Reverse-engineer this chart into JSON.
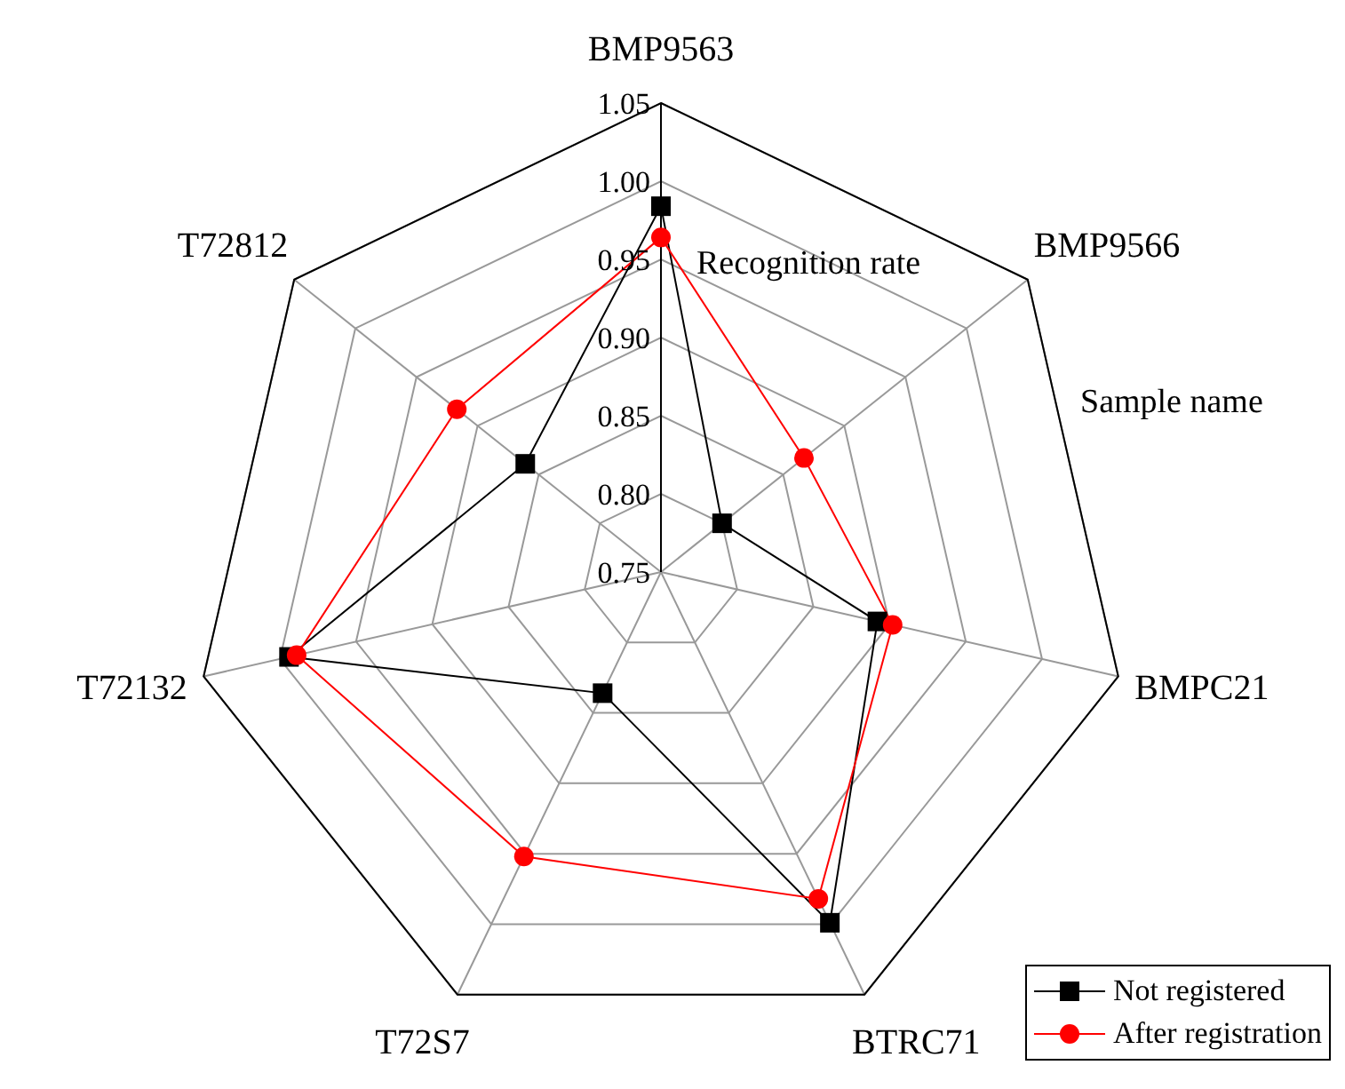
{
  "chart_data": {
    "type": "radar",
    "categories": [
      "BMP9563",
      "BMP9566",
      "BMPC21",
      "BTRC71",
      "T72S7",
      "T72132",
      "T72812"
    ],
    "series": [
      {
        "name": "Not registered",
        "color": "#000000",
        "marker": "square",
        "values": [
          0.984,
          0.8,
          0.892,
          0.999,
          0.836,
          0.994,
          0.861
        ]
      },
      {
        "name": "After registration",
        "color": "#ff0000",
        "marker": "circle",
        "values": [
          0.964,
          0.867,
          0.902,
          0.982,
          0.952,
          0.989,
          0.917
        ]
      }
    ],
    "ylim": [
      0.75,
      1.05
    ],
    "yticks": [
      0.75,
      {
        "value": 0.8,
        "label": "0.80"
      },
      0.85,
      {
        "value": 0.9,
        "label": "0.90"
      },
      0.95,
      {
        "value": 1.0,
        "label": "1.00"
      },
      1.05
    ],
    "annotations": [
      "Recognition rate",
      "Sample name"
    ],
    "grid": true,
    "legend": "bottom right"
  }
}
